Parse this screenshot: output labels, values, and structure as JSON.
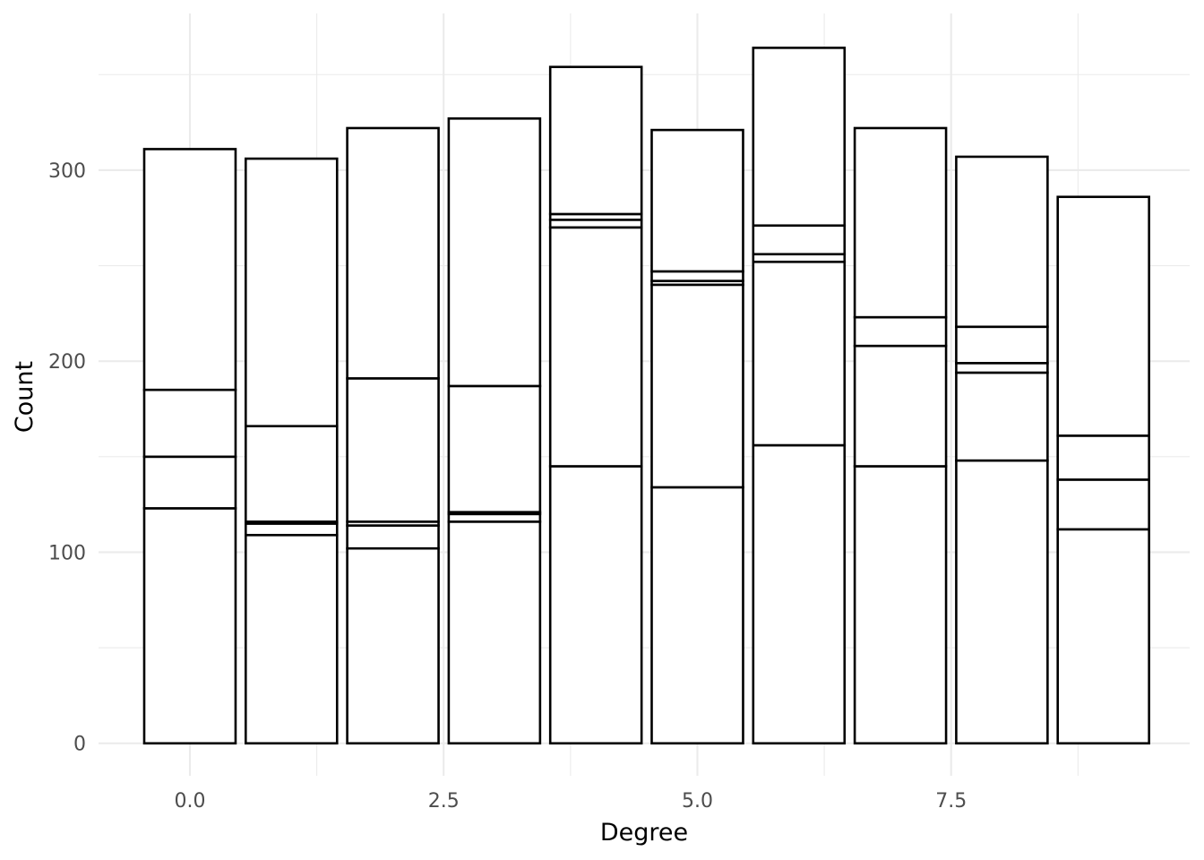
{
  "chart_data": {
    "type": "bar",
    "stacked": true,
    "xlabel": "Degree",
    "ylabel": "Count",
    "x": [
      0,
      1,
      2,
      3,
      4,
      5,
      6,
      7,
      8,
      9
    ],
    "x_ticks": [
      0.0,
      2.5,
      5.0,
      7.5
    ],
    "x_tick_labels": [
      "0.0",
      "2.5",
      "5.0",
      "7.5"
    ],
    "xlim": [
      -0.9,
      9.85
    ],
    "y_ticks": [
      0,
      100,
      200,
      300
    ],
    "y_tick_labels": [
      "0",
      "100",
      "200",
      "300"
    ],
    "ylim": [
      -17,
      382
    ],
    "grid": true,
    "fill_color": "#ffffff",
    "outline_color": "#000000",
    "segments": [
      [
        123,
        27,
        35,
        126
      ],
      [
        109,
        6,
        1,
        50,
        140
      ],
      [
        102,
        12,
        2,
        75,
        131
      ],
      [
        116,
        4,
        1,
        66,
        140
      ],
      [
        145,
        125,
        4,
        3,
        77
      ],
      [
        134,
        106,
        2,
        5,
        74
      ],
      [
        156,
        96,
        4,
        15,
        93
      ],
      [
        145,
        63,
        15,
        99
      ],
      [
        148,
        46,
        5,
        19,
        89
      ],
      [
        112,
        26,
        23,
        125
      ]
    ],
    "totals": [
      311,
      306,
      322,
      327,
      354,
      321,
      364,
      322,
      307,
      286
    ]
  }
}
